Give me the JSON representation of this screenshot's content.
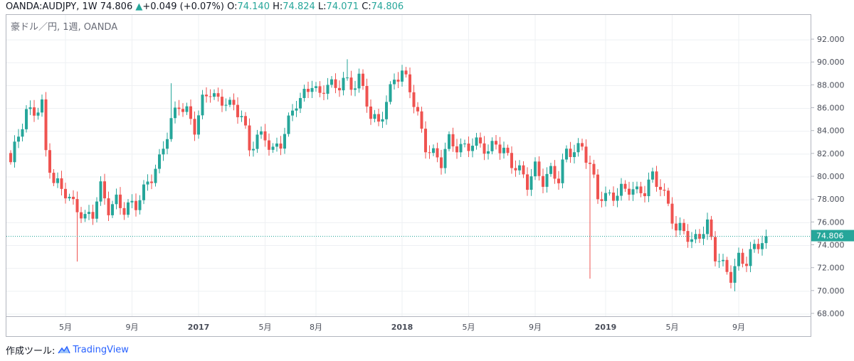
{
  "header": {
    "symbol": "OANDA:AUDJPY, 1W",
    "last": "74.806",
    "arrow": "▲",
    "change": "+0.049 (+0.07%)",
    "o_label": "O:",
    "o_value": "74.140",
    "h_label": "H:",
    "h_value": "74.824",
    "l_label": "L:",
    "l_value": "74.071",
    "c_label": "C:",
    "c_value": "74.806"
  },
  "watermark": "豪ドル／円, 1週, OANDA",
  "footer": {
    "label": "作成ツール:",
    "brand": "TradingView"
  },
  "colors": {
    "up": "#26a69a",
    "down": "#ef5350",
    "grid": "#eef0f3",
    "price_line": "#26a69a"
  },
  "chart_data": {
    "type": "candlestick",
    "title": "OANDA:AUDJPY, 1W",
    "ylim": [
      68.0,
      93.0
    ],
    "y_ticks": [
      "92.000",
      "90.000",
      "88.000",
      "86.000",
      "84.000",
      "82.000",
      "80.000",
      "78.000",
      "76.000",
      "74.000",
      "72.000",
      "70.000",
      "68.000"
    ],
    "x_ticks": [
      {
        "label": "5月",
        "week": 14
      },
      {
        "label": "9月",
        "week": 31
      },
      {
        "label": "2017",
        "week": 48
      },
      {
        "label": "5月",
        "week": 65
      },
      {
        "label": "8月",
        "week": 78
      },
      {
        "label": "2018",
        "week": 100
      },
      {
        "label": "5月",
        "week": 117
      },
      {
        "label": "9月",
        "week": 134
      },
      {
        "label": "2019",
        "week": 152
      },
      {
        "label": "5月",
        "week": 169
      },
      {
        "label": "9月",
        "week": 186
      }
    ],
    "last_price": 74.806,
    "last_price_label": "74.806",
    "anchors": [
      [
        0,
        81.0
      ],
      [
        4,
        85.8
      ],
      [
        8,
        86.4
      ],
      [
        9,
        82.0
      ],
      [
        11,
        79.2
      ],
      [
        14,
        78.8
      ],
      [
        17,
        77.5
      ],
      [
        19,
        76.2
      ],
      [
        21,
        76.5
      ],
      [
        23,
        79.0
      ],
      [
        25,
        77.5
      ],
      [
        27,
        78.2
      ],
      [
        29,
        77.0
      ],
      [
        32,
        77.3
      ],
      [
        35,
        79.8
      ],
      [
        38,
        81.5
      ],
      [
        41,
        84.5
      ],
      [
        43,
        86.3
      ],
      [
        45,
        86.0
      ],
      [
        47,
        84.5
      ],
      [
        49,
        86.5
      ],
      [
        51,
        87.2
      ],
      [
        53,
        86.5
      ],
      [
        55,
        87.0
      ],
      [
        57,
        86.3
      ],
      [
        59,
        85.3
      ],
      [
        61,
        82.0
      ],
      [
        63,
        83.5
      ],
      [
        65,
        83.8
      ],
      [
        67,
        82.5
      ],
      [
        69,
        82.8
      ],
      [
        71,
        84.5
      ],
      [
        73,
        86.5
      ],
      [
        75,
        87.5
      ],
      [
        77,
        88.5
      ],
      [
        79,
        86.8
      ],
      [
        81,
        88.0
      ],
      [
        83,
        87.6
      ],
      [
        85,
        89.0
      ],
      [
        87,
        88.0
      ],
      [
        89,
        88.6
      ],
      [
        90,
        87.2
      ],
      [
        92,
        85.2
      ],
      [
        94,
        84.8
      ],
      [
        96,
        87.0
      ],
      [
        98,
        88.6
      ],
      [
        100,
        88.8
      ],
      [
        102,
        87.5
      ],
      [
        104,
        85.5
      ],
      [
        106,
        83.0
      ],
      [
        108,
        82.0
      ],
      [
        110,
        81.0
      ],
      [
        112,
        83.0
      ],
      [
        114,
        82.8
      ],
      [
        116,
        82.9
      ],
      [
        118,
        83.0
      ],
      [
        120,
        82.5
      ],
      [
        122,
        82.0
      ],
      [
        124,
        83.2
      ],
      [
        126,
        82.6
      ],
      [
        128,
        81.2
      ],
      [
        130,
        80.2
      ],
      [
        132,
        79.2
      ],
      [
        134,
        81.0
      ],
      [
        136,
        80.0
      ],
      [
        138,
        80.5
      ],
      [
        140,
        79.5
      ],
      [
        142,
        82.0
      ],
      [
        144,
        82.5
      ],
      [
        146,
        83.0
      ],
      [
        148,
        81.0
      ],
      [
        150,
        78.0
      ],
      [
        152,
        78.0
      ],
      [
        154,
        78.6
      ],
      [
        156,
        79.2
      ],
      [
        158,
        79.0
      ],
      [
        160,
        78.3
      ],
      [
        162,
        78.6
      ],
      [
        164,
        80.3
      ],
      [
        166,
        79.5
      ],
      [
        168,
        77.5
      ],
      [
        170,
        75.0
      ],
      [
        172,
        75.2
      ],
      [
        174,
        74.5
      ],
      [
        176,
        75.3
      ],
      [
        178,
        75.8
      ],
      [
        180,
        72.8
      ],
      [
        182,
        72.0
      ],
      [
        184,
        71.5
      ],
      [
        186,
        73.2
      ],
      [
        188,
        72.6
      ],
      [
        190,
        73.5
      ],
      [
        192,
        74.2
      ],
      [
        193,
        74.806
      ]
    ],
    "spikes": [
      {
        "week": 17,
        "low": 72.6
      },
      {
        "week": 41,
        "high": 88.2
      },
      {
        "week": 86,
        "high": 90.3
      },
      {
        "week": 148,
        "low": 71.1
      },
      {
        "week": 185,
        "low": 70.0
      }
    ],
    "series_count": 194
  }
}
